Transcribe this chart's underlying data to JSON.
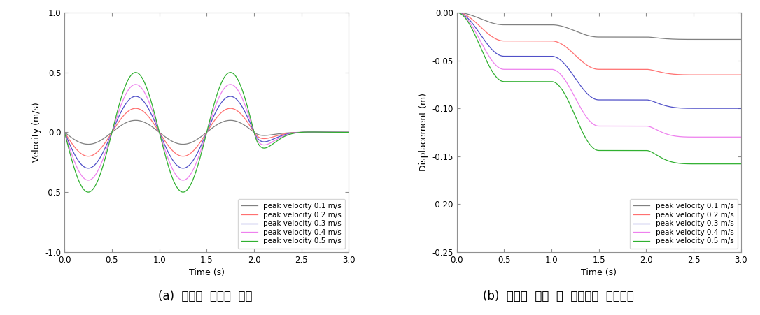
{
  "fig_width": 10.86,
  "fig_height": 4.51,
  "colors": [
    "#808080",
    "#FF7070",
    "#5050C8",
    "#EE80EE",
    "#30B030"
  ],
  "peak_velocities": [
    0.1,
    0.2,
    0.3,
    0.4,
    0.5
  ],
  "legend_labels": [
    "peak velocity 0.1 m/s",
    "peak velocity 0.2 m/s",
    "peak velocity 0.3 m/s",
    "peak velocity 0.4 m/s",
    "peak velocity 0.5 m/s"
  ],
  "plot1": {
    "xlabel": "Time (s)",
    "ylabel": "Velocity (m/s)",
    "xlim": [
      0.0,
      3.0
    ],
    "ylim": [
      -1.0,
      1.0
    ],
    "xticks": [
      0.0,
      0.5,
      1.0,
      1.5,
      2.0,
      2.5,
      3.0
    ],
    "yticks": [
      -1.0,
      -0.5,
      0.0,
      0.5,
      1.0
    ],
    "caption": "(a)  가상의  지진파  생성"
  },
  "plot2": {
    "xlabel": "Time (s)",
    "ylabel": "Displacement (m)",
    "xlim": [
      0.0,
      3.0
    ],
    "ylim": [
      -0.25,
      0.0
    ],
    "xticks": [
      0.0,
      0.5,
      1.0,
      1.5,
      2.0,
      2.5,
      3.0
    ],
    "yticks": [
      0.0,
      -0.05,
      -0.1,
      -0.15,
      -0.2,
      -0.25
    ],
    "caption": "(b)  가상의  발생  시  절리면의  전단변위"
  },
  "disp_finals": [
    0.028,
    0.065,
    0.1,
    0.13,
    0.158
  ],
  "spine_color": "#909090"
}
